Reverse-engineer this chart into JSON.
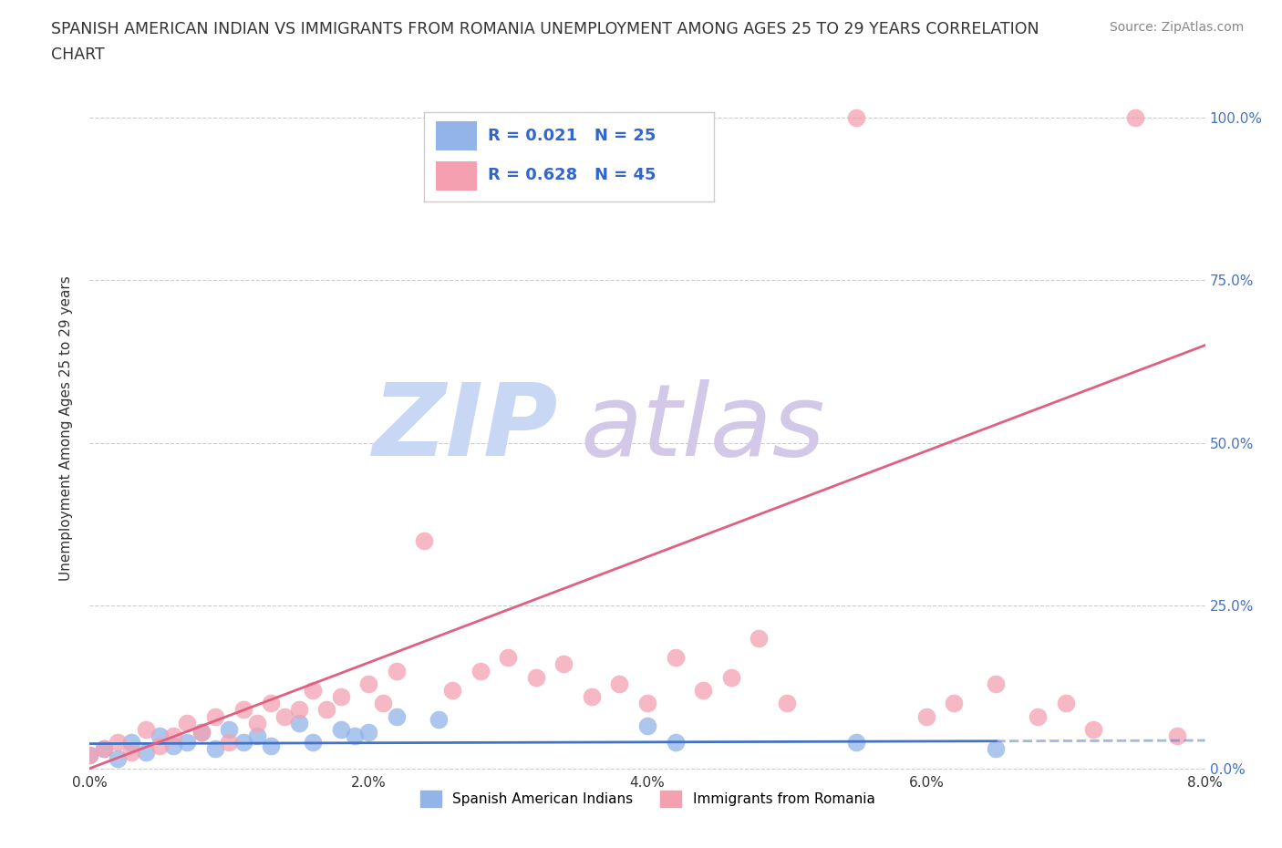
{
  "title_line1": "SPANISH AMERICAN INDIAN VS IMMIGRANTS FROM ROMANIA UNEMPLOYMENT AMONG AGES 25 TO 29 YEARS CORRELATION",
  "title_line2": "CHART",
  "source": "Source: ZipAtlas.com",
  "ylabel": "Unemployment Among Ages 25 to 29 years",
  "xlim": [
    0.0,
    0.08
  ],
  "ylim": [
    -0.005,
    1.05
  ],
  "xticks": [
    0.0,
    0.02,
    0.04,
    0.06,
    0.08
  ],
  "xtick_labels": [
    "0.0%",
    "2.0%",
    "4.0%",
    "6.0%",
    "8.0%"
  ],
  "yticks": [
    0.0,
    0.25,
    0.5,
    0.75,
    1.0
  ],
  "right_ytick_labels": [
    "0.0%",
    "25.0%",
    "50.0%",
    "75.0%",
    "100.0%"
  ],
  "blue_color": "#92b4e8",
  "pink_color": "#f4a0b0",
  "blue_line_color": "#4472c4",
  "pink_line_color": "#e06080",
  "legend_r_blue": "0.021",
  "legend_n_blue": "25",
  "legend_r_pink": "0.628",
  "legend_n_pink": "45",
  "legend_text_color": "#3366cc",
  "watermark_zip_color": "#c8d8f4",
  "watermark_atlas_color": "#d4c8e8",
  "grid_color": "#cccccc",
  "background_color": "#ffffff",
  "right_ytick_color": "#4472c4",
  "blue_scatter_x": [
    0.0,
    0.001,
    0.002,
    0.003,
    0.004,
    0.005,
    0.006,
    0.007,
    0.008,
    0.009,
    0.01,
    0.011,
    0.012,
    0.013,
    0.015,
    0.016,
    0.018,
    0.019,
    0.02,
    0.022,
    0.025,
    0.04,
    0.042,
    0.055,
    0.065
  ],
  "blue_scatter_y": [
    0.02,
    0.03,
    0.015,
    0.04,
    0.025,
    0.05,
    0.035,
    0.04,
    0.055,
    0.03,
    0.06,
    0.04,
    0.05,
    0.035,
    0.07,
    0.04,
    0.06,
    0.05,
    0.055,
    0.08,
    0.075,
    0.065,
    0.04,
    0.04,
    0.03
  ],
  "pink_scatter_x": [
    0.0,
    0.001,
    0.002,
    0.003,
    0.004,
    0.005,
    0.006,
    0.007,
    0.008,
    0.009,
    0.01,
    0.011,
    0.012,
    0.013,
    0.014,
    0.015,
    0.016,
    0.017,
    0.018,
    0.02,
    0.021,
    0.022,
    0.024,
    0.026,
    0.028,
    0.03,
    0.032,
    0.034,
    0.036,
    0.038,
    0.04,
    0.042,
    0.044,
    0.046,
    0.048,
    0.05,
    0.055,
    0.06,
    0.062,
    0.065,
    0.068,
    0.07,
    0.072,
    0.075,
    0.078
  ],
  "pink_scatter_y": [
    0.02,
    0.03,
    0.04,
    0.025,
    0.06,
    0.035,
    0.05,
    0.07,
    0.055,
    0.08,
    0.04,
    0.09,
    0.07,
    0.1,
    0.08,
    0.09,
    0.12,
    0.09,
    0.11,
    0.13,
    0.1,
    0.15,
    0.35,
    0.12,
    0.15,
    0.17,
    0.14,
    0.16,
    0.11,
    0.13,
    0.1,
    0.17,
    0.12,
    0.14,
    0.2,
    0.1,
    1.0,
    0.08,
    0.1,
    0.13,
    0.08,
    0.1,
    0.06,
    1.0,
    0.05
  ],
  "blue_line_x": [
    0.0,
    0.065
  ],
  "blue_line_y": [
    0.038,
    0.042
  ],
  "pink_line_x": [
    0.0,
    0.08
  ],
  "pink_line_y": [
    0.0,
    0.65
  ]
}
